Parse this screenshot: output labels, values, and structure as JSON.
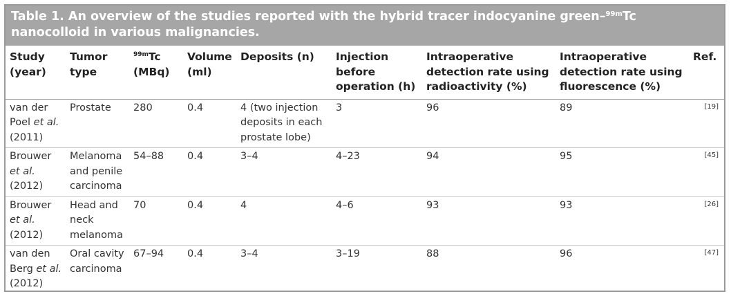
{
  "title": {
    "main": "Table 1. An overview of the studies reported with the hybrid tracer indocyanine green–",
    "sup": "99m",
    "tail": "Tc nanocolloid in various malignancies."
  },
  "headers": {
    "study": "Study (year)",
    "tumor": "Tumor type",
    "tc_sup": "99m",
    "tc_main": "Tc (MBq)",
    "volume": "Volume (ml)",
    "deposits": "Deposits (n)",
    "injection": "Injection before operation (h)",
    "radio": "Intraoperative detection rate using radioactivity (%)",
    "fluor": "Intraoperative detection rate using fluorescence (%)",
    "ref": "Ref."
  },
  "rows": [
    {
      "study_a": "van der Poel ",
      "study_etal": "et al.",
      "study_b": " (2011)",
      "tumor": "Prostate",
      "tc": "280",
      "volume": "0.4",
      "deposits": "4 (two injection deposits in each prostate lobe)",
      "injection": "3",
      "radio": "96",
      "fluor": "89",
      "ref": "[19]"
    },
    {
      "study_a": "Brouwer ",
      "study_etal": "et al.",
      "study_b": " (2012)",
      "tumor": "Melanoma and penile carcinoma",
      "tc": "54–88",
      "volume": "0.4",
      "deposits": "3–4",
      "injection": "4–23",
      "radio": "94",
      "fluor": "95",
      "ref": "[45]"
    },
    {
      "study_a": "Brouwer ",
      "study_etal": "et al.",
      "study_b": " (2012)",
      "tumor": "Head and neck melanoma",
      "tc": "70",
      "volume": "0.4",
      "deposits": "4",
      "injection": "4–6",
      "radio": "93",
      "fluor": "93",
      "ref": "[26]"
    },
    {
      "study_a": "van den Berg ",
      "study_etal": "et al.",
      "study_b": " (2012)",
      "tumor": "Oral cavity carcinoma",
      "tc": "67–94",
      "volume": "0.4",
      "deposits": "3–4",
      "injection": "3–19",
      "radio": "88",
      "fluor": "96",
      "ref": "[47]"
    }
  ]
}
